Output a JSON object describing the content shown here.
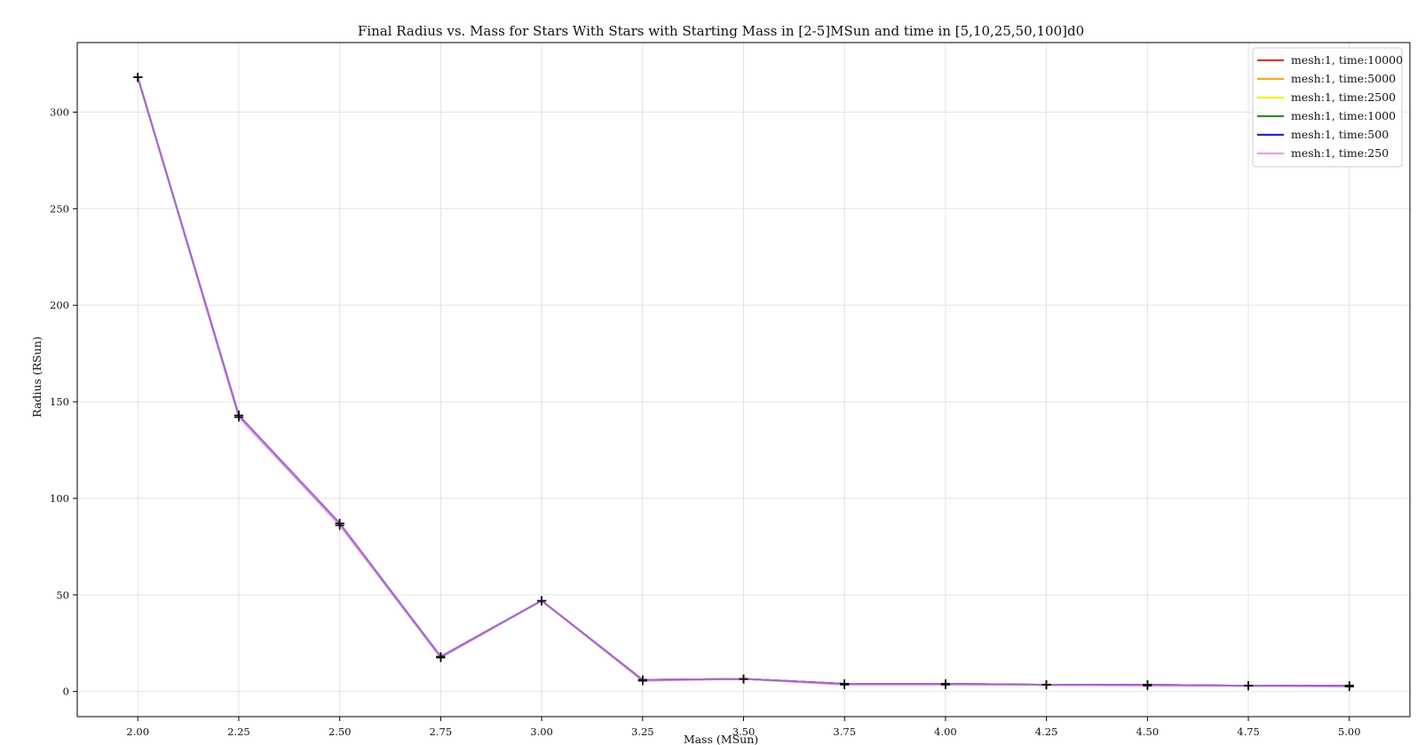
{
  "chart_data": {
    "type": "line",
    "title": "Final Radius vs. Mass for Stars With Stars with Starting Mass in [2-5]MSun and time in [5,10,25,50,100]d0",
    "xlabel": "Mass (MSun)",
    "ylabel": "Radius (RSun)",
    "xlim": [
      1.85,
      5.15
    ],
    "ylim": [
      -13,
      336
    ],
    "x_ticks": [
      2.0,
      2.25,
      2.5,
      2.75,
      3.0,
      3.25,
      3.5,
      3.75,
      4.0,
      4.25,
      4.5,
      4.75,
      5.0
    ],
    "x_tick_labels": [
      "2.00",
      "2.25",
      "2.50",
      "2.75",
      "3.00",
      "3.25",
      "3.50",
      "3.75",
      "4.00",
      "4.25",
      "4.50",
      "4.75",
      "5.00"
    ],
    "y_ticks": [
      0,
      50,
      100,
      150,
      200,
      250,
      300
    ],
    "y_tick_labels": [
      "0",
      "50",
      "100",
      "150",
      "200",
      "250",
      "300"
    ],
    "grid": true,
    "legend_position": "top-right",
    "x": [
      2.0,
      2.25,
      2.5,
      2.75,
      3.0,
      3.25,
      3.5,
      3.75,
      4.0,
      4.25,
      4.5,
      4.75,
      5.0
    ],
    "series": [
      {
        "name": "mesh:1, time:10000",
        "color": "#e8312c",
        "values": [
          318,
          143,
          87,
          18,
          47,
          6,
          6.5,
          4,
          4,
          3.5,
          3.5,
          3,
          3
        ]
      },
      {
        "name": "mesh:1, time:5000",
        "color": "#f5a623",
        "values": [
          318,
          143,
          87,
          18,
          47,
          6,
          6.5,
          4,
          4,
          3.5,
          3.5,
          3,
          3
        ]
      },
      {
        "name": "mesh:1, time:2500",
        "color": "#f2ee21",
        "values": [
          318,
          143,
          87,
          18,
          47,
          6,
          6.5,
          4,
          4,
          3.5,
          3.5,
          3,
          3
        ]
      },
      {
        "name": "mesh:1, time:1000",
        "color": "#2e8b2e",
        "values": [
          318,
          143,
          87,
          18,
          47,
          6,
          6.5,
          4,
          4,
          3.5,
          3.5,
          3,
          3
        ]
      },
      {
        "name": "mesh:1, time:500",
        "color": "#2323e0",
        "values": [
          318,
          143,
          87,
          18,
          47,
          6,
          6.5,
          4,
          4,
          3.5,
          3.5,
          3,
          3
        ]
      },
      {
        "name": "mesh:1, time:250",
        "color": "#e8a0e8",
        "values": [
          318,
          142,
          86,
          17.5,
          47,
          5.5,
          6.5,
          3.5,
          3.5,
          3.5,
          3,
          3,
          2.5
        ]
      }
    ],
    "overlay_line_color": "#a66ad0",
    "marker_color": "#111111",
    "grid_color": "#e3e3e3"
  }
}
